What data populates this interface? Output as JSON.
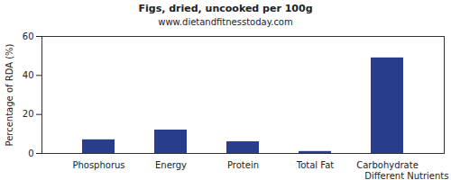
{
  "chart_data": {
    "type": "bar",
    "title": "Figs, dried, uncooked per 100g",
    "subtitle": "www.dietandfitnesstoday.com",
    "x_label": "Different Nutrients",
    "y_label": "Percentage of RDA (%)",
    "categories": [
      "Phosphorus",
      "Energy",
      "Protein",
      "Total Fat",
      "Carbohydrate"
    ],
    "values": [
      7,
      12,
      6,
      1,
      49
    ],
    "color": "#283e8c",
    "ylim": [
      0,
      60
    ],
    "yticks": [
      0,
      20,
      40,
      60
    ],
    "grid": false
  }
}
